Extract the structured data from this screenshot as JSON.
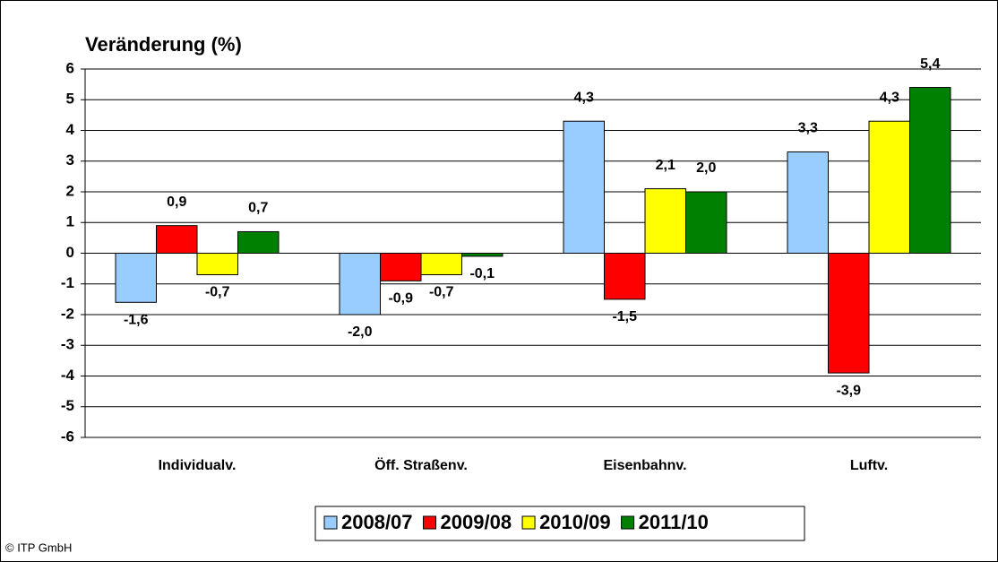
{
  "chart_data": {
    "type": "bar",
    "y_axis_title": "Veränderung (%)",
    "source": "© ITP GmbH",
    "categories": [
      "Individualv.",
      "Öff. Straßenv.",
      "Eisenbahnv.",
      "Luftv."
    ],
    "series": [
      {
        "name": "2008/07",
        "color": "#99ccff",
        "values": [
          -1.6,
          -2.0,
          4.3,
          3.3
        ],
        "value_labels": [
          "-1,6",
          "-2,0",
          "4,3",
          "3,3"
        ]
      },
      {
        "name": "2009/08",
        "color": "#ff0000",
        "values": [
          0.9,
          -0.9,
          -1.5,
          -3.9
        ],
        "value_labels": [
          "0,9",
          "-0,9",
          "-1,5",
          "-3,9"
        ]
      },
      {
        "name": "2010/09",
        "color": "#ffff00",
        "values": [
          -0.7,
          -0.7,
          2.1,
          4.3
        ],
        "value_labels": [
          "-0,7",
          "-0,7",
          "2,1",
          "4,3"
        ]
      },
      {
        "name": "2011/10",
        "color": "#008000",
        "values": [
          0.7,
          -0.1,
          2.0,
          5.4
        ],
        "value_labels": [
          "0,7",
          "-0,1",
          "2,0",
          "5,4"
        ]
      }
    ],
    "ylim": [
      -6,
      6
    ],
    "yticks": [
      -6,
      -5,
      -4,
      -3,
      -2,
      -1,
      0,
      1,
      2,
      3,
      4,
      5,
      6
    ],
    "grid": true
  }
}
